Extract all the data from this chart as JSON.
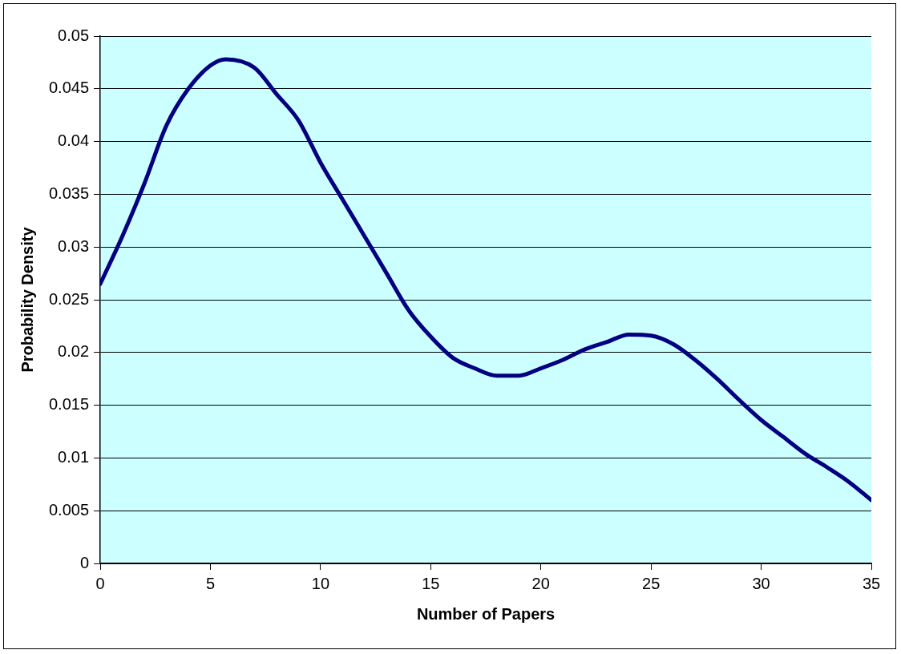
{
  "chart_data": {
    "type": "line",
    "xlabel": "Number of Papers",
    "ylabel": "Probability Density",
    "x": [
      0,
      1,
      2,
      3,
      4,
      5,
      5.7,
      7,
      8,
      9,
      10,
      11,
      12,
      13,
      14,
      15,
      16,
      17,
      18,
      19,
      20,
      21,
      22,
      23,
      24,
      25,
      26,
      27,
      28,
      29,
      30,
      31,
      32,
      33,
      34,
      35
    ],
    "series": [
      {
        "color": "#000080",
        "values": [
          0.0265,
          0.031,
          0.036,
          0.0415,
          0.045,
          0.0472,
          0.0478,
          0.047,
          0.0445,
          0.042,
          0.038,
          0.0345,
          0.031,
          0.0275,
          0.024,
          0.0215,
          0.0195,
          0.0185,
          0.0178,
          0.0178,
          0.0185,
          0.0193,
          0.0203,
          0.021,
          0.0217,
          0.0216,
          0.0208,
          0.0193,
          0.0175,
          0.0155,
          0.0136,
          0.012,
          0.0104,
          0.0091,
          0.0077,
          0.006
        ]
      }
    ],
    "xlim": [
      0,
      35
    ],
    "xticks": [
      0,
      5,
      10,
      15,
      20,
      25,
      30,
      35
    ],
    "ylim": [
      0,
      0.05
    ],
    "yticks": [
      0,
      0.005,
      0.01,
      0.015,
      0.02,
      0.025,
      0.03,
      0.035,
      0.04,
      0.045,
      0.05
    ],
    "grid": "y",
    "legend": false,
    "marker": "none",
    "line_style": "solid"
  }
}
